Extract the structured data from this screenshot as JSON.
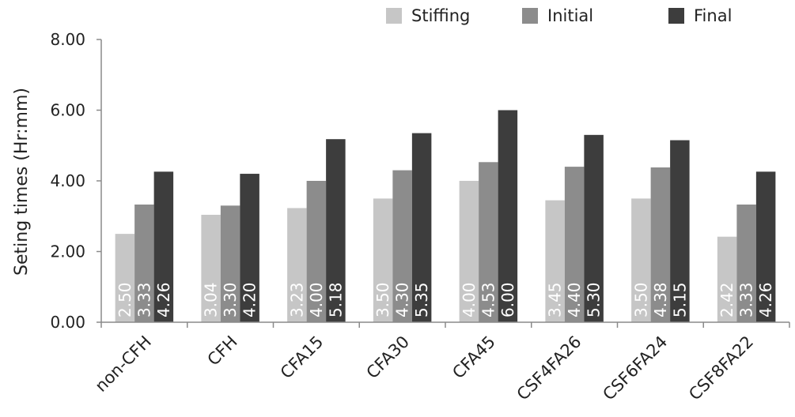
{
  "chart_data": {
    "type": "bar",
    "title": "",
    "xlabel": "",
    "ylabel": "Seting times (Hr:mm)",
    "ylim": [
      0,
      8
    ],
    "yticks": [
      "0.00",
      "2.00",
      "4.00",
      "6.00",
      "8.00"
    ],
    "grid": false,
    "legend_position": "top-right",
    "categories": [
      "non-CFH",
      "CFH",
      "CFA15",
      "CFA30",
      "CFA45",
      "CSF4FA26",
      "CSF6FA24",
      "CSF8FA22"
    ],
    "series": [
      {
        "name": "Stiffing",
        "color": "#c6c6c6",
        "values": [
          2.5,
          3.04,
          3.23,
          3.5,
          4.0,
          3.45,
          3.5,
          2.42
        ],
        "labels": [
          "2.50",
          "3.04",
          "3.23",
          "3.50",
          "4.00",
          "3.45",
          "3.50",
          "2.42"
        ]
      },
      {
        "name": "Initial",
        "color": "#8c8c8c",
        "values": [
          3.33,
          3.3,
          4.0,
          4.3,
          4.53,
          4.4,
          4.38,
          3.33
        ],
        "labels": [
          "3.33",
          "3.30",
          "4.00",
          "4.30",
          "4.53",
          "4.40",
          "4.38",
          "3.33"
        ]
      },
      {
        "name": "Final",
        "color": "#3d3d3d",
        "values": [
          4.26,
          4.2,
          5.18,
          5.35,
          6.0,
          5.3,
          5.15,
          4.26
        ],
        "labels": [
          "4.26",
          "4.20",
          "5.18",
          "5.35",
          "6.00",
          "5.30",
          "5.15",
          "4.26"
        ]
      }
    ]
  }
}
